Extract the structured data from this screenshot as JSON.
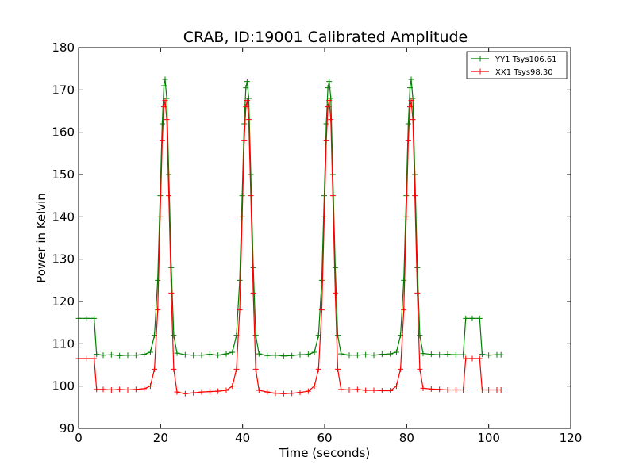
{
  "chart_data": {
    "type": "line",
    "title": "CRAB, ID:19001 Calibrated Amplitude",
    "xlabel": "Time (seconds)",
    "ylabel": "Power in Kelvin",
    "xlim": [
      0,
      120
    ],
    "ylim": [
      90,
      180
    ],
    "xticks": [
      "0",
      "20",
      "40",
      "60",
      "80",
      "100",
      "120"
    ],
    "yticks": [
      "90",
      "100",
      "110",
      "120",
      "130",
      "140",
      "150",
      "160",
      "170",
      "180"
    ],
    "grid": false,
    "legend_position": "top-right",
    "marker": "plus",
    "series": [
      {
        "name": "YY1 Tsys106.61",
        "color": "#008000",
        "x": [
          0,
          2,
          3.8,
          4.4,
          6,
          8,
          10,
          12,
          14,
          16,
          17.5,
          18.5,
          19.3,
          19.9,
          20.4,
          20.8,
          21.1,
          21.5,
          22,
          22.6,
          23.2,
          24,
          26,
          28,
          30,
          32,
          34,
          36,
          37.5,
          38.5,
          39.3,
          39.9,
          40.4,
          40.8,
          41.1,
          41.5,
          42,
          42.6,
          43.2,
          44,
          46,
          48,
          50,
          52,
          54,
          56,
          57.5,
          58.5,
          59.3,
          59.9,
          60.4,
          60.8,
          61.1,
          61.5,
          62,
          62.6,
          63.2,
          64,
          66,
          68,
          70,
          72,
          74,
          76,
          77.5,
          78.5,
          79.3,
          79.9,
          80.4,
          80.8,
          81.1,
          81.5,
          82,
          82.6,
          83.2,
          84,
          86,
          88,
          90,
          92,
          93.8,
          94.4,
          96,
          97.8,
          98.4,
          100,
          102,
          103
        ],
        "y": [
          116,
          116,
          116,
          107.5,
          107.3,
          107.4,
          107.2,
          107.3,
          107.3,
          107.5,
          108,
          112,
          125,
          145,
          162,
          171,
          172.5,
          168,
          150,
          128,
          112,
          107.8,
          107.4,
          107.3,
          107.3,
          107.5,
          107.3,
          107.6,
          108,
          112,
          125,
          145,
          162,
          170.5,
          172,
          168,
          150,
          128,
          112,
          107.6,
          107.2,
          107.3,
          107.1,
          107.2,
          107.4,
          107.5,
          108,
          112,
          125,
          145,
          162,
          170.5,
          172,
          168,
          150,
          128,
          112,
          107.6,
          107.3,
          107.3,
          107.4,
          107.3,
          107.5,
          107.6,
          108,
          112,
          125,
          145,
          162,
          170.5,
          172.5,
          168,
          150,
          128,
          112,
          107.7,
          107.5,
          107.4,
          107.5,
          107.4,
          107.4,
          116,
          116,
          116,
          107.5,
          107.3,
          107.4,
          107.4
        ]
      },
      {
        "name": "XX1 Tsys98.30",
        "color": "#ff0000",
        "x": [
          0,
          2,
          3.8,
          4.4,
          6,
          8,
          10,
          12,
          14,
          16,
          17.5,
          18.5,
          19.3,
          19.9,
          20.4,
          20.8,
          21.1,
          21.5,
          22,
          22.6,
          23.2,
          24,
          26,
          28,
          30,
          32,
          34,
          36,
          37.5,
          38.5,
          39.3,
          39.9,
          40.4,
          40.8,
          41.1,
          41.5,
          42,
          42.6,
          43.2,
          44,
          46,
          48,
          50,
          52,
          54,
          56,
          57.5,
          58.5,
          59.3,
          59.9,
          60.4,
          60.8,
          61.1,
          61.5,
          62,
          62.6,
          63.2,
          64,
          66,
          68,
          70,
          72,
          74,
          76,
          77.5,
          78.5,
          79.3,
          79.9,
          80.4,
          80.8,
          81.1,
          81.5,
          82,
          82.6,
          83.2,
          84,
          86,
          88,
          90,
          92,
          93.8,
          94.4,
          96,
          97.8,
          98.4,
          100,
          102,
          103
        ],
        "y": [
          106.5,
          106.5,
          106.5,
          99.2,
          99.2,
          99.1,
          99.2,
          99.1,
          99.2,
          99.4,
          100,
          104,
          118,
          140,
          158,
          166,
          167.5,
          163,
          145,
          122,
          104,
          98.6,
          98.2,
          98.4,
          98.6,
          98.7,
          98.8,
          99,
          100,
          104,
          118,
          140,
          158,
          166,
          167.5,
          163,
          145,
          122,
          104,
          99,
          98.6,
          98.3,
          98.2,
          98.3,
          98.5,
          98.8,
          100,
          104,
          118,
          140,
          158,
          166,
          167.5,
          163,
          145,
          122,
          104,
          99.2,
          99.1,
          99.2,
          99,
          99,
          98.9,
          98.9,
          100,
          104,
          118,
          140,
          158,
          166,
          167.5,
          163,
          145,
          122,
          104,
          99.5,
          99.3,
          99.2,
          99.1,
          99.1,
          99.1,
          106.5,
          106.5,
          106.5,
          99.1,
          99.1,
          99.1,
          99.1
        ]
      }
    ]
  }
}
